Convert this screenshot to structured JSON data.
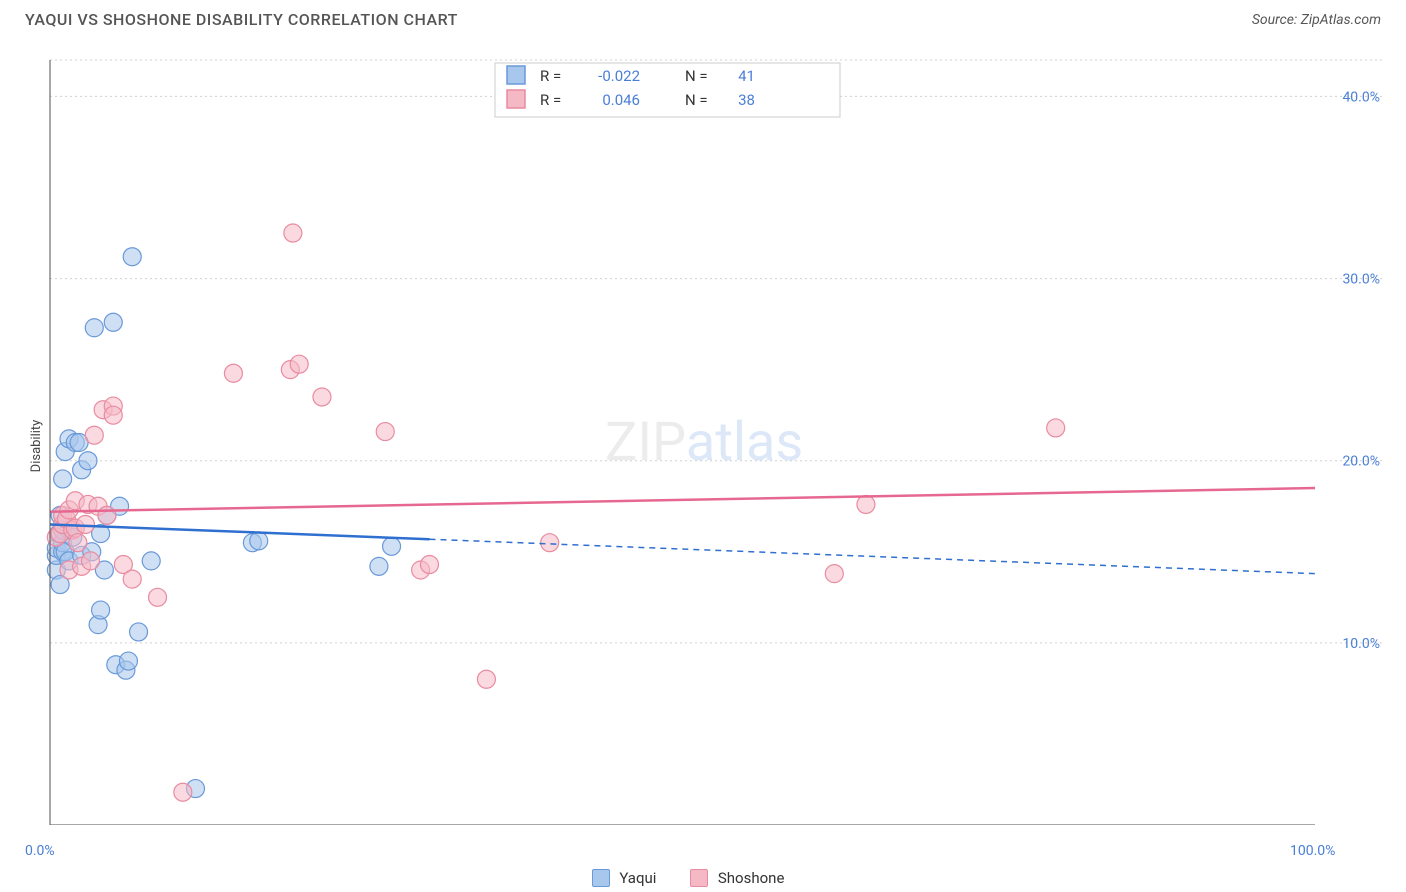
{
  "title": "YAQUI VS SHOSHONE DISABILITY CORRELATION CHART",
  "source": "Source: ZipAtlas.com",
  "y_axis_label": "Disability",
  "watermark_a": "ZIP",
  "watermark_b": "atlas",
  "chart": {
    "type": "scatter",
    "xlim": [
      0,
      100
    ],
    "ylim": [
      0,
      42
    ],
    "x_ticks": [
      0,
      100
    ],
    "x_tick_labels": [
      "0.0%",
      "100.0%"
    ],
    "x_minor_ticks": [
      10,
      20,
      30,
      40,
      50,
      60,
      70,
      80,
      90
    ],
    "y_ticks": [
      10,
      20,
      30,
      40
    ],
    "y_tick_labels": [
      "10.0%",
      "20.0%",
      "30.0%",
      "40.0%"
    ],
    "y_grid": [
      10,
      20,
      30,
      40,
      42
    ],
    "background_color": "#ffffff",
    "grid_color": "#d0d0d0",
    "axis_color": "#505050",
    "tick_label_color": "#4a7fd6",
    "series": [
      {
        "name": "Yaqui",
        "marker_fill": "#a8c7ec",
        "marker_stroke": "#6a99d8",
        "marker_opacity": 0.55,
        "marker_radius": 9,
        "trend_color": "#2f6fd0",
        "trend_y_at_x0": 16.5,
        "trend_y_at_x100": 13.8,
        "trend_solid_xmax": 30,
        "R": "-0.022",
        "N": "41",
        "points": [
          [
            0.5,
            14.0
          ],
          [
            0.5,
            14.8
          ],
          [
            0.5,
            15.2
          ],
          [
            0.7,
            16.0
          ],
          [
            0.8,
            13.2
          ],
          [
            0.8,
            17.0
          ],
          [
            1.0,
            15.0
          ],
          [
            1.0,
            15.5
          ],
          [
            1.0,
            16.2
          ],
          [
            1.0,
            19.0
          ],
          [
            1.2,
            20.5
          ],
          [
            1.2,
            15.0
          ],
          [
            1.5,
            14.5
          ],
          [
            1.5,
            16.2
          ],
          [
            1.5,
            21.2
          ],
          [
            1.8,
            15.8
          ],
          [
            2.0,
            21.0
          ],
          [
            2.3,
            21.0
          ],
          [
            2.5,
            14.8
          ],
          [
            2.5,
            19.5
          ],
          [
            3.0,
            20.0
          ],
          [
            3.3,
            15.0
          ],
          [
            3.5,
            27.3
          ],
          [
            3.8,
            11.0
          ],
          [
            4.0,
            11.8
          ],
          [
            4.0,
            16.0
          ],
          [
            4.3,
            14.0
          ],
          [
            4.5,
            17.0
          ],
          [
            5.0,
            27.6
          ],
          [
            5.2,
            8.8
          ],
          [
            5.5,
            17.5
          ],
          [
            6.0,
            8.5
          ],
          [
            6.2,
            9.0
          ],
          [
            6.5,
            31.2
          ],
          [
            7.0,
            10.6
          ],
          [
            8.0,
            14.5
          ],
          [
            11.5,
            2.0
          ],
          [
            16.0,
            15.5
          ],
          [
            16.5,
            15.6
          ],
          [
            26.0,
            14.2
          ],
          [
            27.0,
            15.3
          ]
        ]
      },
      {
        "name": "Shoshone",
        "marker_fill": "#f5b9c6",
        "marker_stroke": "#e98ba0",
        "marker_opacity": 0.55,
        "marker_radius": 9,
        "trend_color": "#e66890",
        "trend_y_at_x0": 17.2,
        "trend_y_at_x100": 18.5,
        "trend_solid_xmax": 100,
        "R": "0.046",
        "N": "38",
        "points": [
          [
            0.5,
            15.8
          ],
          [
            0.8,
            16.0
          ],
          [
            1.0,
            16.5
          ],
          [
            1.0,
            17.0
          ],
          [
            1.3,
            16.8
          ],
          [
            1.5,
            14.0
          ],
          [
            1.5,
            17.3
          ],
          [
            1.8,
            16.2
          ],
          [
            2.0,
            16.3
          ],
          [
            2.0,
            17.8
          ],
          [
            2.2,
            15.5
          ],
          [
            2.5,
            14.2
          ],
          [
            2.8,
            16.5
          ],
          [
            3.0,
            17.6
          ],
          [
            3.2,
            14.5
          ],
          [
            3.5,
            21.4
          ],
          [
            3.8,
            17.5
          ],
          [
            4.2,
            22.8
          ],
          [
            4.5,
            17.0
          ],
          [
            5.0,
            23.0
          ],
          [
            5.0,
            22.5
          ],
          [
            5.8,
            14.3
          ],
          [
            6.5,
            13.5
          ],
          [
            8.5,
            12.5
          ],
          [
            10.5,
            1.8
          ],
          [
            14.5,
            24.8
          ],
          [
            19.0,
            25.0
          ],
          [
            19.2,
            32.5
          ],
          [
            19.7,
            25.3
          ],
          [
            21.5,
            23.5
          ],
          [
            26.5,
            21.6
          ],
          [
            29.3,
            14.0
          ],
          [
            30.0,
            14.3
          ],
          [
            34.5,
            8.0
          ],
          [
            39.5,
            15.5
          ],
          [
            62.0,
            13.8
          ],
          [
            64.5,
            17.6
          ],
          [
            79.5,
            21.8
          ]
        ]
      }
    ]
  },
  "legend_top": {
    "col_r": "R =",
    "col_n": "N ="
  },
  "legend_bottom": {
    "items": [
      {
        "label": "Yaqui",
        "fill": "#a8c7ec",
        "stroke": "#6a99d8"
      },
      {
        "label": "Shoshone",
        "fill": "#f5b9c6",
        "stroke": "#e98ba0"
      }
    ]
  }
}
